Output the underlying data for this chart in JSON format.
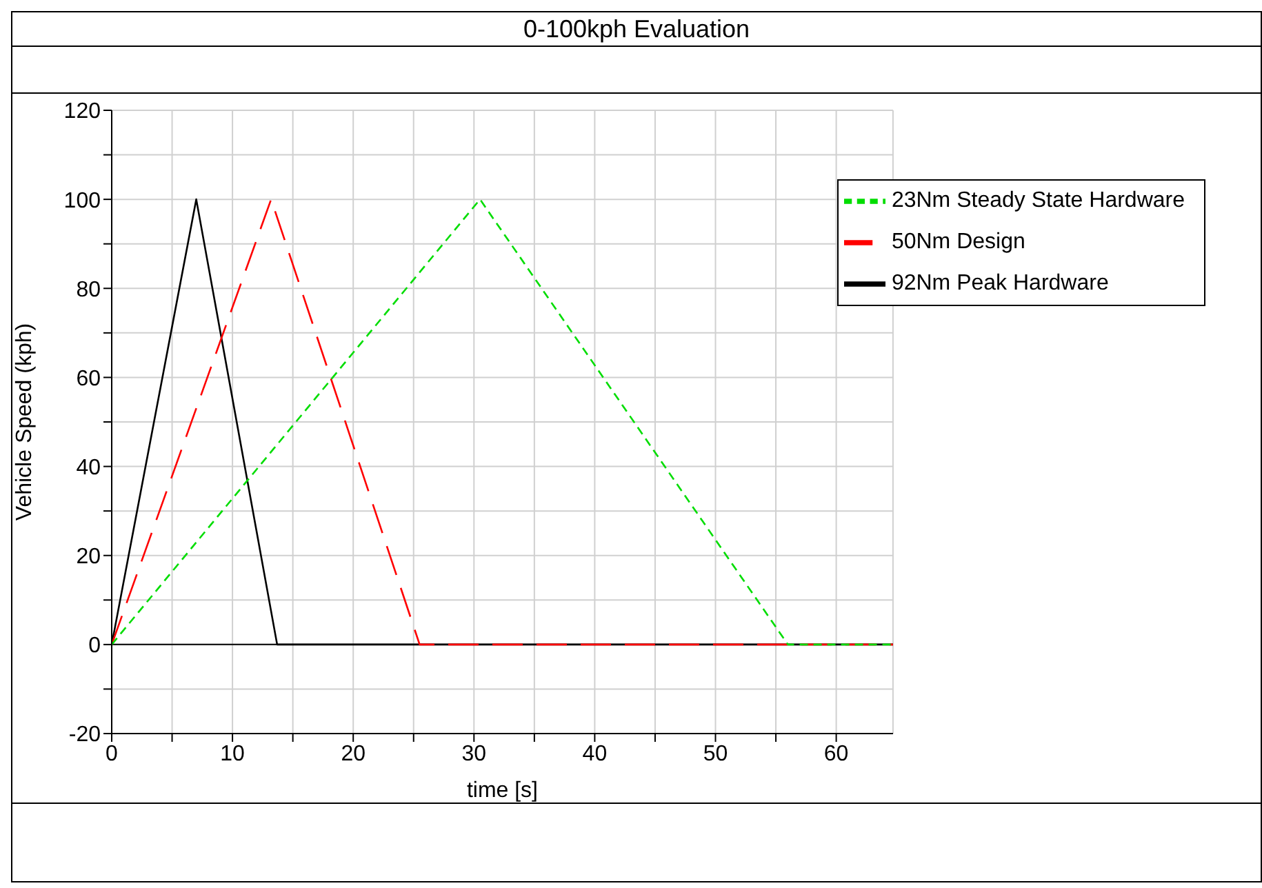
{
  "chart_data": {
    "type": "line",
    "title": "0-100kph Evaluation",
    "xlabel": "time [s]",
    "ylabel": "Vehicle Speed (kph)",
    "xlim": [
      0,
      64.7
    ],
    "ylim": [
      -20,
      120
    ],
    "xticks": [
      0,
      {
        "value": 5,
        "label": null
      },
      10,
      {
        "value": 15,
        "label": null
      },
      20,
      {
        "value": 25,
        "label": null
      },
      30,
      {
        "value": 35,
        "label": null
      },
      40,
      {
        "value": 45,
        "label": null
      },
      50,
      {
        "value": 55,
        "label": null
      },
      60
    ],
    "yticks": [
      -20,
      {
        "value": -10,
        "label": null
      },
      0,
      {
        "value": 10,
        "label": null
      },
      20,
      {
        "value": 30,
        "label": null
      },
      40,
      {
        "value": 50,
        "label": null
      },
      60,
      {
        "value": 70,
        "label": null
      },
      80,
      {
        "value": 90,
        "label": null
      },
      100,
      {
        "value": 110,
        "label": null
      },
      120
    ],
    "grid": true,
    "legend": "top right",
    "marker": "none",
    "series": [
      {
        "name": "92Nm Peak Hardware",
        "color": "#000000",
        "line_style": "solid",
        "x": [
          0,
          7,
          13.7,
          64.7
        ],
        "values": [
          0,
          100,
          0,
          0
        ]
      },
      {
        "name": "50Nm Design",
        "color": "#ff0000",
        "line_style": "dashed",
        "x": [
          0,
          13.2,
          25.5,
          64.7
        ],
        "values": [
          0,
          100,
          0,
          0
        ]
      },
      {
        "name": "23Nm Steady State Hardware",
        "color": "#00dd00",
        "line_style": "dotted",
        "x": [
          0,
          30.5,
          56,
          64.7
        ],
        "values": [
          0,
          100,
          0,
          0
        ]
      }
    ]
  }
}
